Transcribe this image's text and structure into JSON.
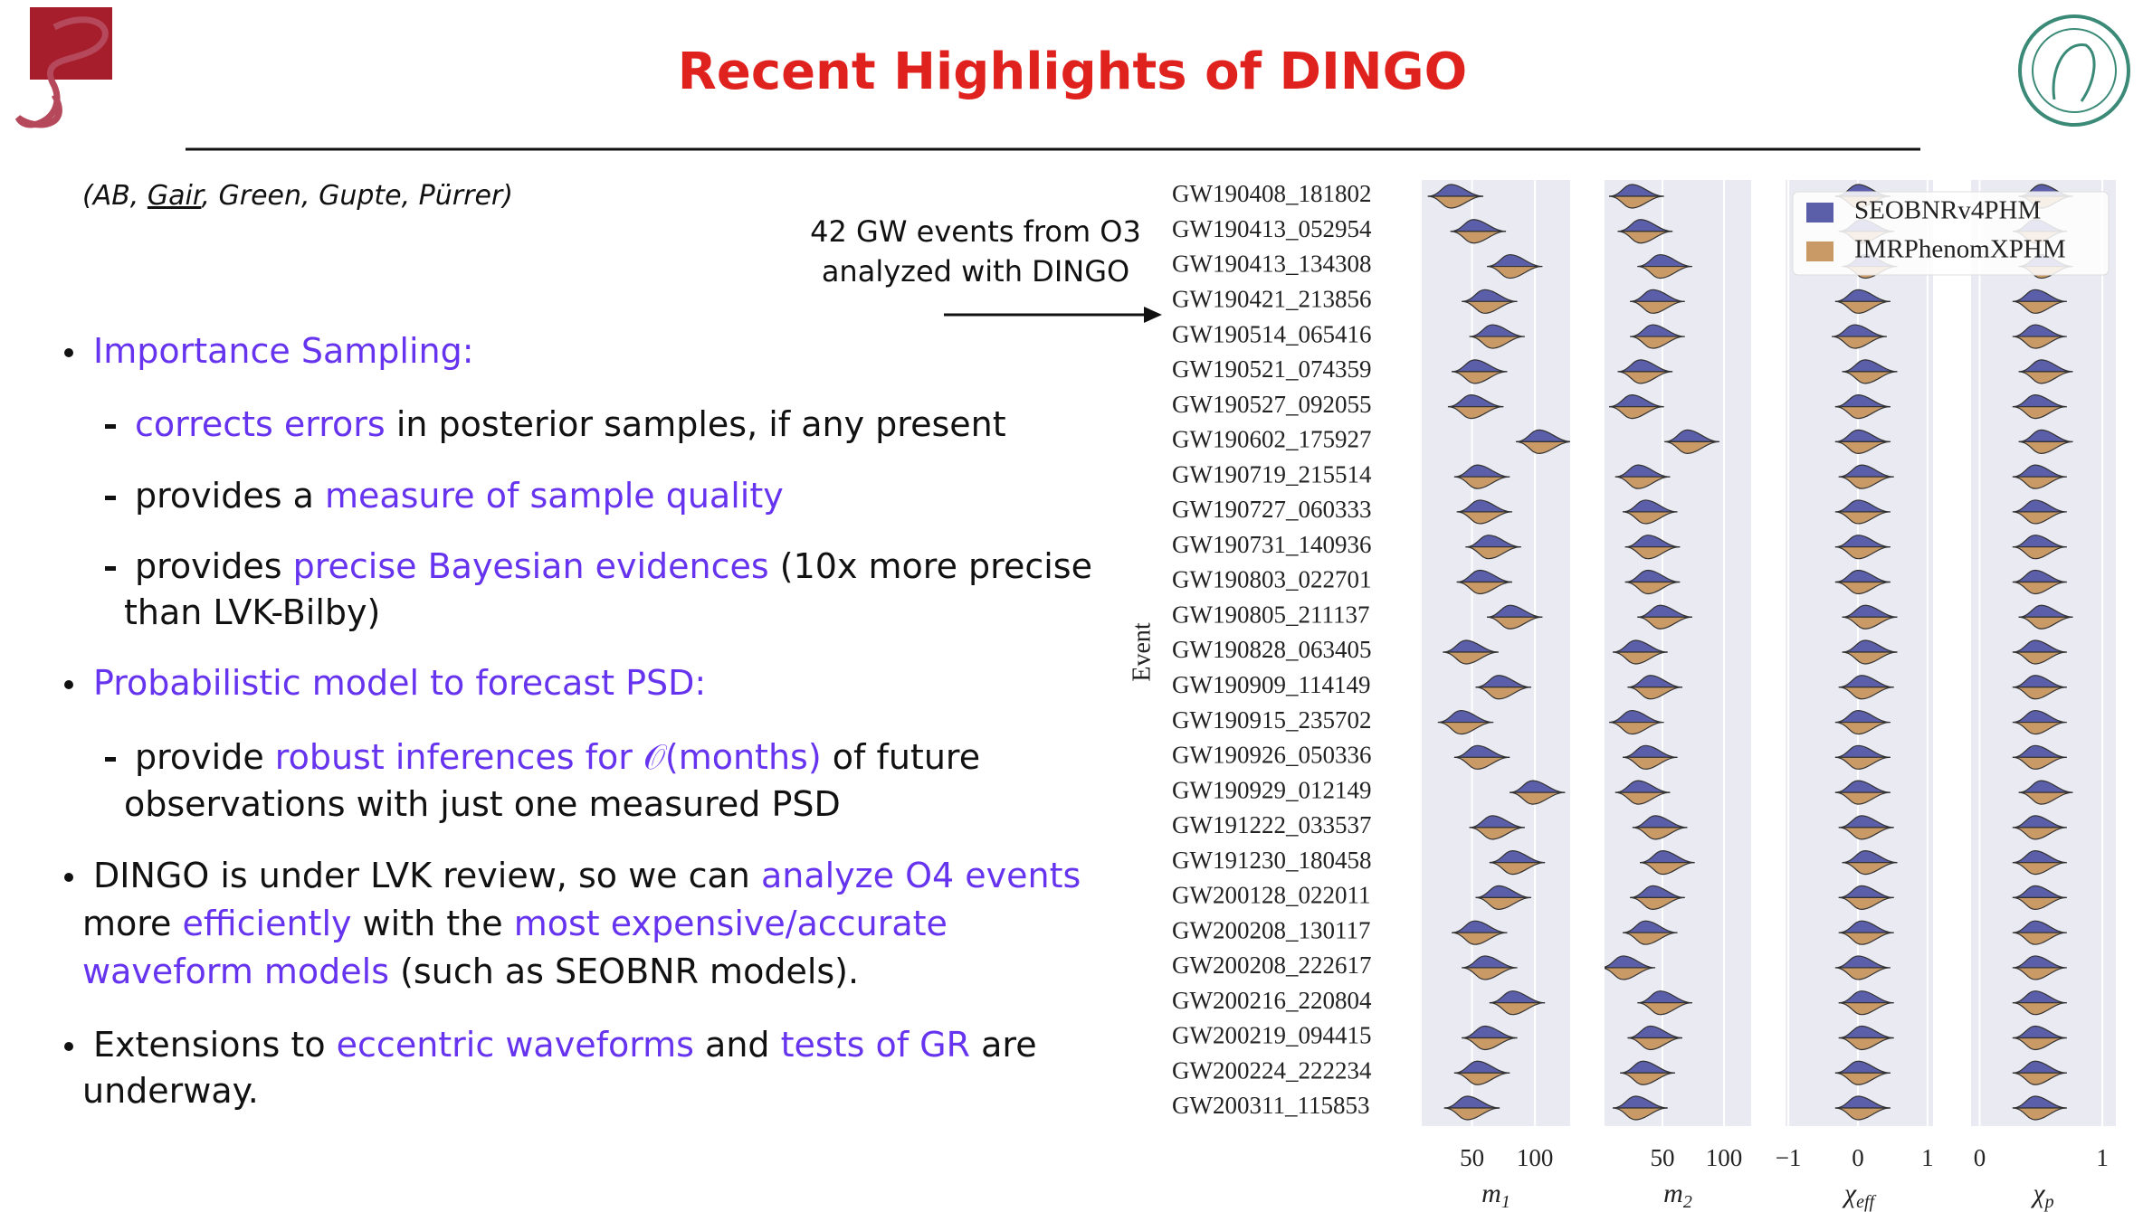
{
  "header": {
    "title": "Recent Highlights of DINGO"
  },
  "authors": [
    {
      "text": "(AB, "
    },
    {
      "text": "Gair",
      "underline": true
    },
    {
      "text": ", Green, Gupte, Pürrer)"
    }
  ],
  "annotation": {
    "lines": [
      "42 GW events from O3",
      "analyzed with DINGO"
    ]
  },
  "bullets": [
    {
      "level": 1,
      "lines": [
        [
          {
            "text": "Importance Sampling:",
            "hl": true
          }
        ]
      ]
    },
    {
      "level": 2,
      "lines": [
        [
          {
            "text": "corrects errors",
            "hl": true
          },
          {
            "text": " in posterior samples, if any present"
          }
        ]
      ]
    },
    {
      "level": 2,
      "lines": [
        [
          {
            "text": "provides a "
          },
          {
            "text": "measure of sample quality",
            "hl": true
          }
        ]
      ]
    },
    {
      "level": 2,
      "lines": [
        [
          {
            "text": "provides "
          },
          {
            "text": "precise Bayesian evidences",
            "hl": true
          },
          {
            "text": " (10x more precise"
          }
        ],
        [
          {
            "text": "than LVK-Bilby)"
          }
        ]
      ]
    },
    {
      "level": 1,
      "lines": [
        [
          {
            "text": "Probabilistic model to forecast PSD:",
            "hl": true
          }
        ]
      ]
    },
    {
      "level": 2,
      "lines": [
        [
          {
            "text": "provide "
          },
          {
            "text": "robust inferences for 𝒪(months)",
            "hl": true
          },
          {
            "text": " of future"
          }
        ],
        [
          {
            "text": "observations with just one measured PSD"
          }
        ]
      ]
    },
    {
      "level": 1,
      "lines": [
        [
          {
            "text": "DINGO is under LVK review, so we can "
          },
          {
            "text": "analyze O4 events",
            "hl": true
          }
        ],
        [
          {
            "text": "more "
          },
          {
            "text": "efficiently",
            "hl": true
          },
          {
            "text": " with the "
          },
          {
            "text": "most expensive/accurate",
            "hl": true
          }
        ],
        [
          {
            "text": "waveform models",
            "hl": true
          },
          {
            "text": " (such as SEOBNR models)."
          }
        ]
      ]
    },
    {
      "level": 1,
      "lines": [
        [
          {
            "text": "Extensions to "
          },
          {
            "text": "eccentric waveforms",
            "hl": true
          },
          {
            "text": " and "
          },
          {
            "text": "tests of GR",
            "hl": true
          },
          {
            "text": " are"
          }
        ],
        [
          {
            "text": "underway."
          }
        ]
      ]
    }
  ],
  "chart_data": {
    "type": "violin",
    "ylabel": "Event",
    "categories": [
      "GW190408_181802",
      "GW190413_052954",
      "GW190413_134308",
      "GW190421_213856",
      "GW190514_065416",
      "GW190521_074359",
      "GW190527_092055",
      "GW190602_175927",
      "GW190719_215514",
      "GW190727_060333",
      "GW190731_140936",
      "GW190803_022701",
      "GW190805_211137",
      "GW190828_063405",
      "GW190909_114149",
      "GW190915_235702",
      "GW190926_050336",
      "GW190929_012149",
      "GW191222_033537",
      "GW191230_180458",
      "GW200128_022011",
      "GW200208_130117",
      "GW200208_222617",
      "GW200216_220804",
      "GW200219_094415",
      "GW200224_222234",
      "GW200311_115853"
    ],
    "legend": [
      {
        "name": "SEOBNRv4PHM",
        "color": "#5b5ea8"
      },
      {
        "name": "IMRPhenomXPHM",
        "color": "#c99a66"
      }
    ],
    "panels": [
      {
        "xlabel": {
          "base": "m",
          "sub": "1"
        },
        "xlim": [
          10,
          128
        ],
        "xticks": [
          50,
          100
        ],
        "values": [
          33,
          51,
          80,
          60,
          66,
          52,
          49,
          103,
          54,
          56,
          63,
          56,
          80,
          45,
          71,
          41,
          54,
          98,
          66,
          82,
          71,
          52,
          60,
          82,
          60,
          54,
          46
        ]
      },
      {
        "xlabel": {
          "base": "m",
          "sub": "2"
        },
        "xlim": [
          3,
          122
        ],
        "xticks": [
          50,
          100
        ],
        "values": [
          25,
          32,
          48,
          42,
          42,
          32,
          25,
          70,
          30,
          36,
          38,
          38,
          48,
          28,
          40,
          25,
          36,
          30,
          44,
          50,
          42,
          36,
          18,
          48,
          40,
          34,
          28
        ]
      },
      {
        "xlabel": {
          "base": "χ",
          "sub": "eff"
        },
        "xlim": [
          -1.04,
          1.08
        ],
        "xticks": [
          {
            "value": -1,
            "label": "−1"
          },
          0,
          1
        ],
        "values": [
          0,
          0.05,
          0.1,
          0,
          -0.05,
          0.1,
          0,
          0,
          0.05,
          0,
          0,
          0,
          0.1,
          0.1,
          0.05,
          0,
          0,
          0,
          0.05,
          0.1,
          0.05,
          0.05,
          0,
          0.05,
          0.05,
          0,
          0
        ]
      },
      {
        "xlabel": {
          "base": "χ",
          "sub": "p"
        },
        "xlim": [
          -0.07,
          1.11
        ],
        "xticks": [
          0,
          1
        ],
        "values": [
          0.5,
          0.45,
          0.5,
          0.45,
          0.45,
          0.5,
          0.45,
          0.5,
          0.45,
          0.45,
          0.45,
          0.45,
          0.5,
          0.45,
          0.45,
          0.45,
          0.45,
          0.5,
          0.45,
          0.45,
          0.45,
          0.45,
          0.45,
          0.45,
          0.45,
          0.45,
          0.45
        ]
      }
    ]
  }
}
